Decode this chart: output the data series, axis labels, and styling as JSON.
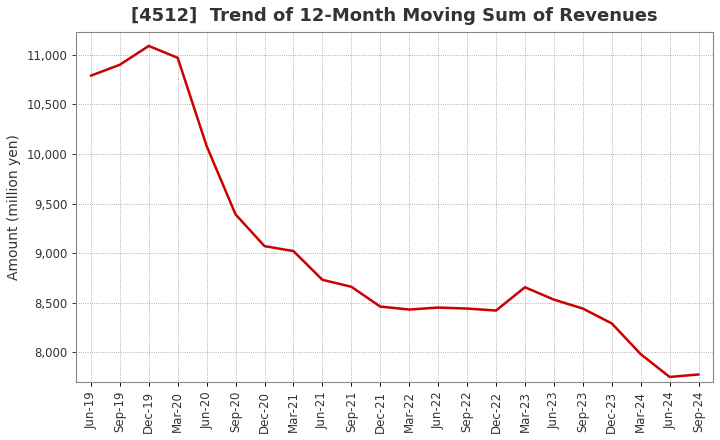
{
  "title": "[4512]  Trend of 12-Month Moving Sum of Revenues",
  "ylabel": "Amount (million yen)",
  "background_color": "#ffffff",
  "plot_bg_color": "#ffffff",
  "line_color": "#cc0000",
  "grid_color": "#999999",
  "text_color": "#333333",
  "x_labels": [
    "Jun-19",
    "Sep-19",
    "Dec-19",
    "Mar-20",
    "Jun-20",
    "Sep-20",
    "Dec-20",
    "Mar-21",
    "Jun-21",
    "Sep-21",
    "Dec-21",
    "Mar-22",
    "Jun-22",
    "Sep-22",
    "Dec-22",
    "Mar-23",
    "Jun-23",
    "Sep-23",
    "Dec-23",
    "Mar-24",
    "Jun-24",
    "Sep-24"
  ],
  "values": [
    10790,
    10900,
    11090,
    10970,
    10080,
    9390,
    9070,
    9020,
    8730,
    8660,
    8460,
    8430,
    8450,
    8440,
    8420,
    8655,
    8530,
    8440,
    8290,
    7980,
    7750,
    7775
  ],
  "ylim_min": 7700,
  "ylim_max": 11230,
  "yticks": [
    8000,
    8500,
    9000,
    9500,
    10000,
    10500,
    11000
  ],
  "title_fontsize": 13,
  "tick_fontsize": 8.5,
  "ylabel_fontsize": 10
}
